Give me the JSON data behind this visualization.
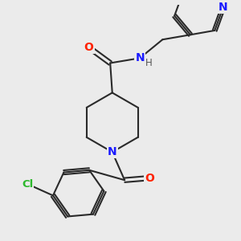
{
  "background_color": "#ebebeb",
  "bond_color": "#2a2a2a",
  "bond_width": 1.5,
  "atom_colors": {
    "N": "#1a1aff",
    "O": "#ff2200",
    "Cl": "#2db82d",
    "C": "#2a2a2a",
    "H": "#555555"
  },
  "font_size_atoms": 10,
  "font_size_H": 8.5
}
